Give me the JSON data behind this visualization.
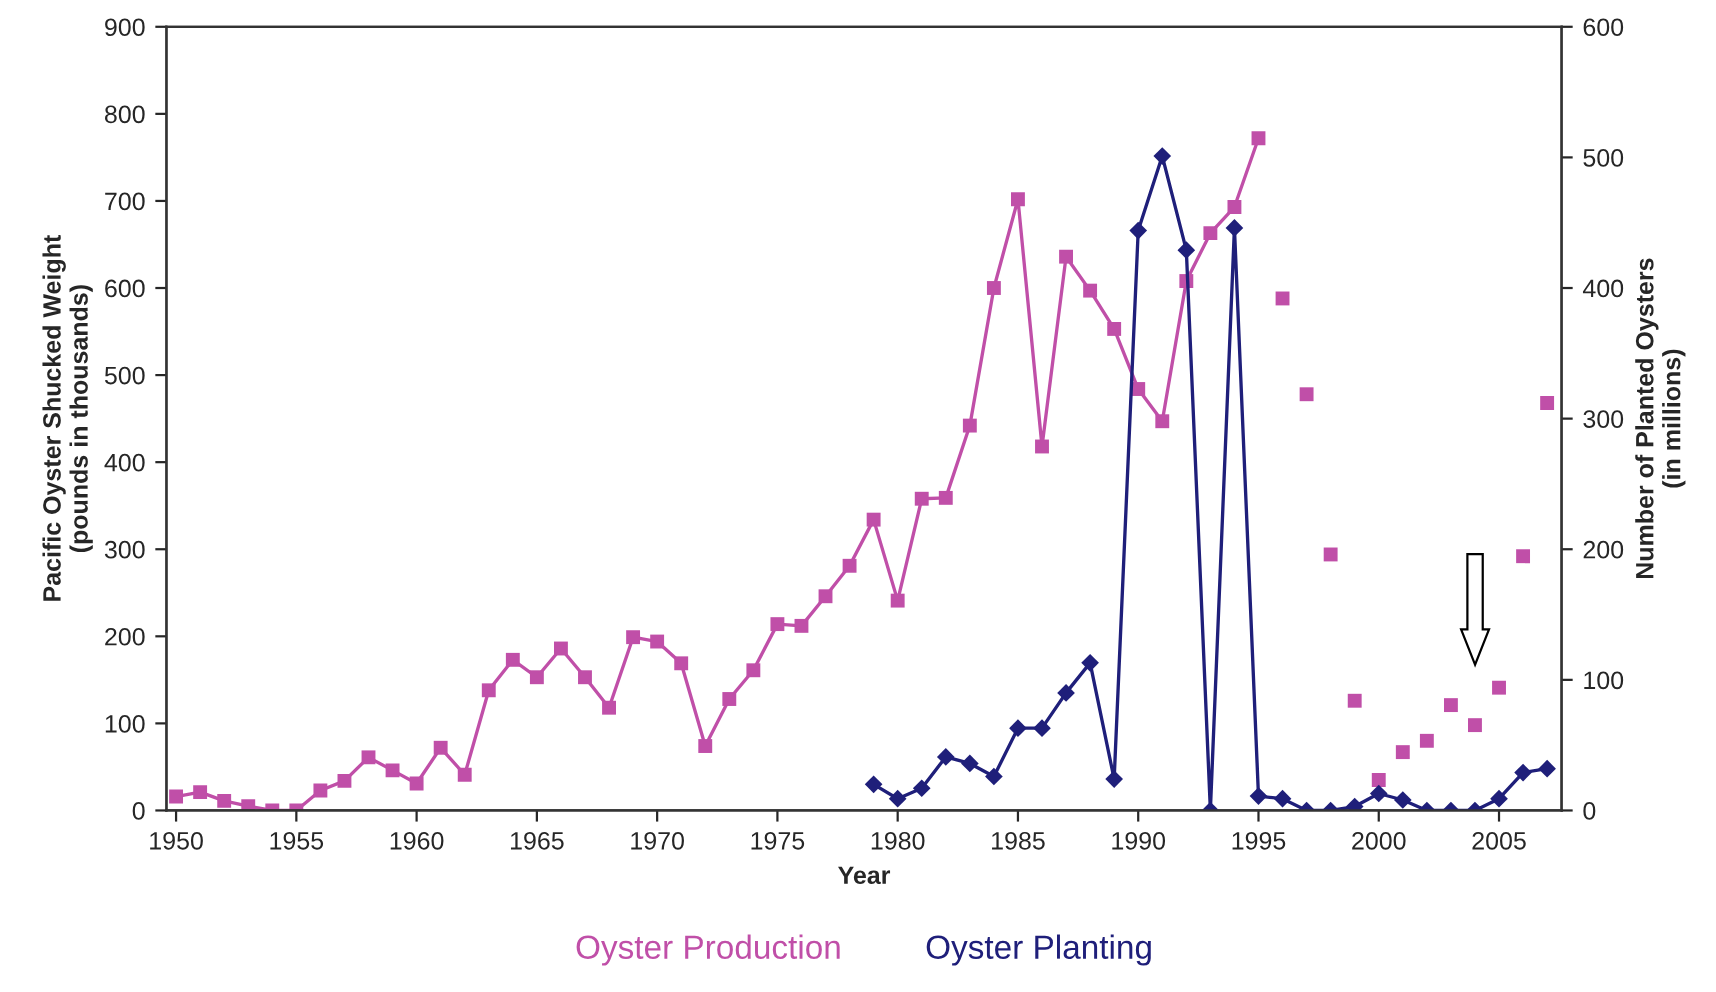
{
  "chart_data": {
    "type": "line",
    "xlabel": "Year",
    "ylabel": "Pacific Oyster Shucked Weight\n(pounds in thousands)",
    "y2label": "Number of Planted Oysters\n(in millions)",
    "xlim": [
      1949.6,
      2007.6
    ],
    "xticks": [
      1950,
      1955,
      1960,
      1965,
      1970,
      1975,
      1980,
      1985,
      1990,
      1995,
      2000,
      2005
    ],
    "ylim": [
      0,
      900
    ],
    "yticks": [
      0,
      100,
      200,
      300,
      400,
      500,
      600,
      700,
      800,
      900
    ],
    "y2lim": [
      0,
      600
    ],
    "y2ticks": [
      0,
      100,
      200,
      300,
      400,
      500,
      600
    ],
    "legend": "bottom",
    "grid": false,
    "series": [
      {
        "name": "Oyster Production",
        "color": "#c04fa8",
        "marker": "square",
        "x": [
          1950,
          1951,
          1952,
          1953,
          1954,
          1955,
          1956,
          1957,
          1958,
          1959,
          1960,
          1961,
          1962,
          1963,
          1964,
          1965,
          1966,
          1967,
          1968,
          1969,
          1970,
          1971,
          1972,
          1973,
          1974,
          1975,
          1976,
          1977,
          1978,
          1979,
          1980,
          1981,
          1982,
          1983,
          1984,
          1985,
          1986,
          1987,
          1988,
          1989,
          1990,
          1991,
          1992,
          1993,
          1994,
          1995
        ],
        "values": [
          16,
          21,
          11,
          5,
          0,
          0,
          23,
          34,
          61,
          46,
          31,
          72,
          41,
          138,
          173,
          153,
          186,
          153,
          118,
          199,
          194,
          169,
          74,
          128,
          161,
          214,
          212,
          246,
          281,
          334,
          241,
          358,
          359,
          442,
          600,
          702,
          418,
          636,
          597,
          553,
          484,
          447,
          608,
          663,
          693,
          772
        ]
      },
      {
        "color": "#c04fa8",
        "type": "scatter",
        "marker": "square",
        "x": [
          1996,
          1997,
          1998,
          1999,
          2000,
          2001,
          2002,
          2003,
          2004,
          2005,
          2006,
          2007
        ],
        "values": [
          588,
          478,
          294,
          126,
          35,
          67,
          80,
          121,
          98,
          141,
          292,
          468
        ]
      },
      {
        "name": "Oyster Planting",
        "color": "#1f1f7a",
        "marker": "diamond",
        "axis": "y2",
        "x": [
          1979,
          1980,
          1981,
          1982,
          1983,
          1984,
          1985,
          1986,
          1987,
          1988,
          1989,
          1990,
          1991,
          1992,
          1993,
          1994,
          1995,
          1996,
          1997,
          1998,
          1999,
          2000,
          2001,
          2002,
          2003,
          2004,
          2005,
          2006,
          2007
        ],
        "values": [
          20,
          9,
          17,
          41,
          36,
          26,
          63,
          63,
          90,
          113,
          24,
          444,
          501,
          429,
          0,
          446,
          11,
          9,
          0,
          0,
          3,
          13,
          8,
          0,
          0,
          0,
          9,
          29,
          32
        ]
      }
    ]
  }
}
